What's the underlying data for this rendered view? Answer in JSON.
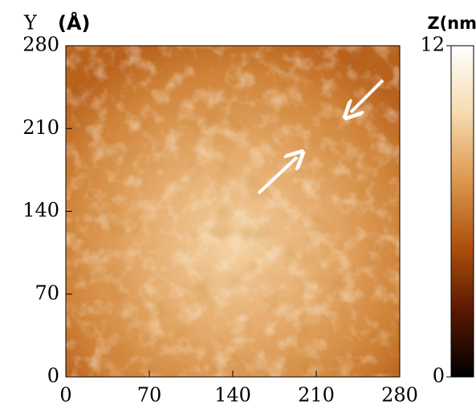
{
  "chart_data": {
    "type": "image",
    "y_label": "Y",
    "y_label_unit": "(Å)",
    "colorbar_label": "Z(nm)",
    "xlim": [
      0,
      280
    ],
    "xticks": [
      0,
      70,
      140,
      210,
      280
    ],
    "ylim": [
      0,
      280
    ],
    "yticks": [
      0,
      70,
      140,
      210,
      280
    ],
    "zlim": [
      0,
      12
    ],
    "zticks": [
      0,
      12
    ],
    "colormap": [
      "#000000",
      "#5a1800",
      "#b0520e",
      "#dd9a50",
      "#f6dcb0",
      "#ffffff"
    ]
  }
}
